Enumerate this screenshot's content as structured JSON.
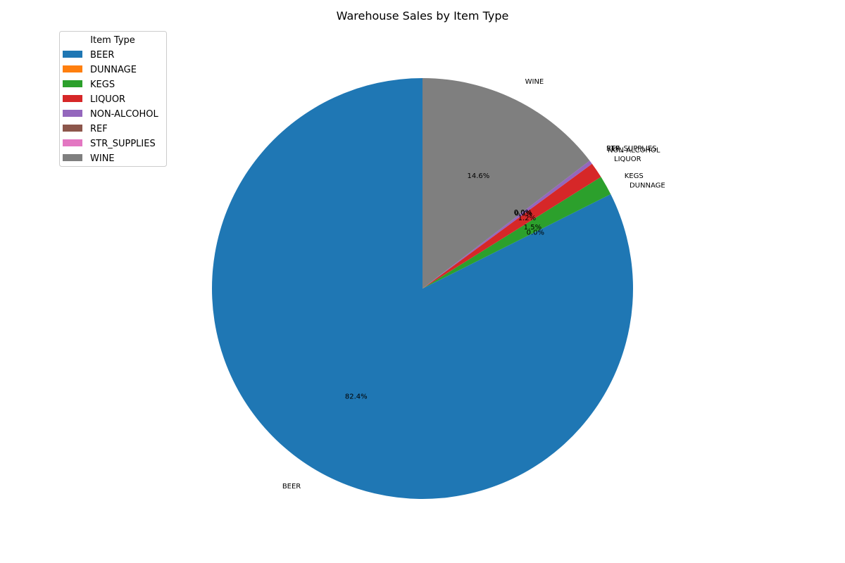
{
  "chart_data": {
    "type": "pie",
    "title": "Warehouse Sales by Item Type",
    "legend_title": "Item Type",
    "legend_placement": "top-left",
    "start_angle_deg": 90,
    "direction": "counterclockwise",
    "slices": [
      {
        "label": "BEER",
        "value": 82.4,
        "pct_label": "82.4%",
        "color": "#1f77b4"
      },
      {
        "label": "DUNNAGE",
        "value": 0.0,
        "pct_label": "0.0%",
        "color": "#ff7f0e"
      },
      {
        "label": "KEGS",
        "value": 1.5,
        "pct_label": "1.5%",
        "color": "#2ca02c"
      },
      {
        "label": "LIQUOR",
        "value": 1.2,
        "pct_label": "1.2%",
        "color": "#d62728"
      },
      {
        "label": "NON-ALCOHOL",
        "value": 0.3,
        "pct_label": "0.3%",
        "color": "#9467bd"
      },
      {
        "label": "REF",
        "value": 0.0,
        "pct_label": "0.0%",
        "color": "#8c564b"
      },
      {
        "label": "STR_SUPPLIES",
        "value": 0.0,
        "pct_label": "0.0%",
        "color": "#e377c2"
      },
      {
        "label": "WINE",
        "value": 14.6,
        "pct_label": "14.6%",
        "color": "#7f7f7f"
      }
    ]
  }
}
